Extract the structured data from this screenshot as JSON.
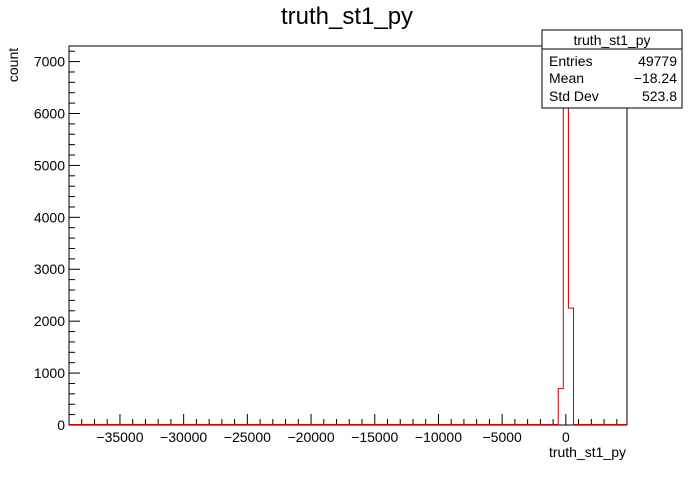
{
  "chart_data": {
    "type": "bar",
    "title": "truth_st1_py",
    "xlabel": "truth_st1_py",
    "ylabel": "count",
    "xlim": [
      -39000,
      4800
    ],
    "ylim": [
      0,
      7300
    ],
    "x_ticks": [
      {
        "value": -35000,
        "label": "−35000"
      },
      {
        "value": -30000,
        "label": "−30000"
      },
      {
        "value": -25000,
        "label": "−25000"
      },
      {
        "value": -20000,
        "label": "−20000"
      },
      {
        "value": -15000,
        "label": "−15000"
      },
      {
        "value": -10000,
        "label": "−10000"
      },
      {
        "value": -5000,
        "label": "−5000"
      },
      {
        "value": 0,
        "label": "0"
      }
    ],
    "y_ticks": [
      {
        "value": 0,
        "label": "0"
      },
      {
        "value": 1000,
        "label": "1000"
      },
      {
        "value": 2000,
        "label": "2000"
      },
      {
        "value": 3000,
        "label": "3000"
      },
      {
        "value": 4000,
        "label": "4000"
      },
      {
        "value": 5000,
        "label": "5000"
      },
      {
        "value": 6000,
        "label": "6000"
      },
      {
        "value": 7000,
        "label": "7000"
      }
    ],
    "bins": [
      {
        "x_low": -600,
        "x_high": -200,
        "count": 700
      },
      {
        "x_low": -200,
        "x_high": 200,
        "count": 7000
      },
      {
        "x_low": 200,
        "x_high": 600,
        "count": 2250
      }
    ],
    "line_color": "#cc0000",
    "grid": false,
    "stats_box": {
      "title": "truth_st1_py",
      "rows": [
        {
          "label": "Entries",
          "value": "49779"
        },
        {
          "label": "Mean",
          "value": "−18.24"
        },
        {
          "label": "Std Dev",
          "value": "523.8"
        }
      ],
      "placement": "top-right"
    }
  }
}
